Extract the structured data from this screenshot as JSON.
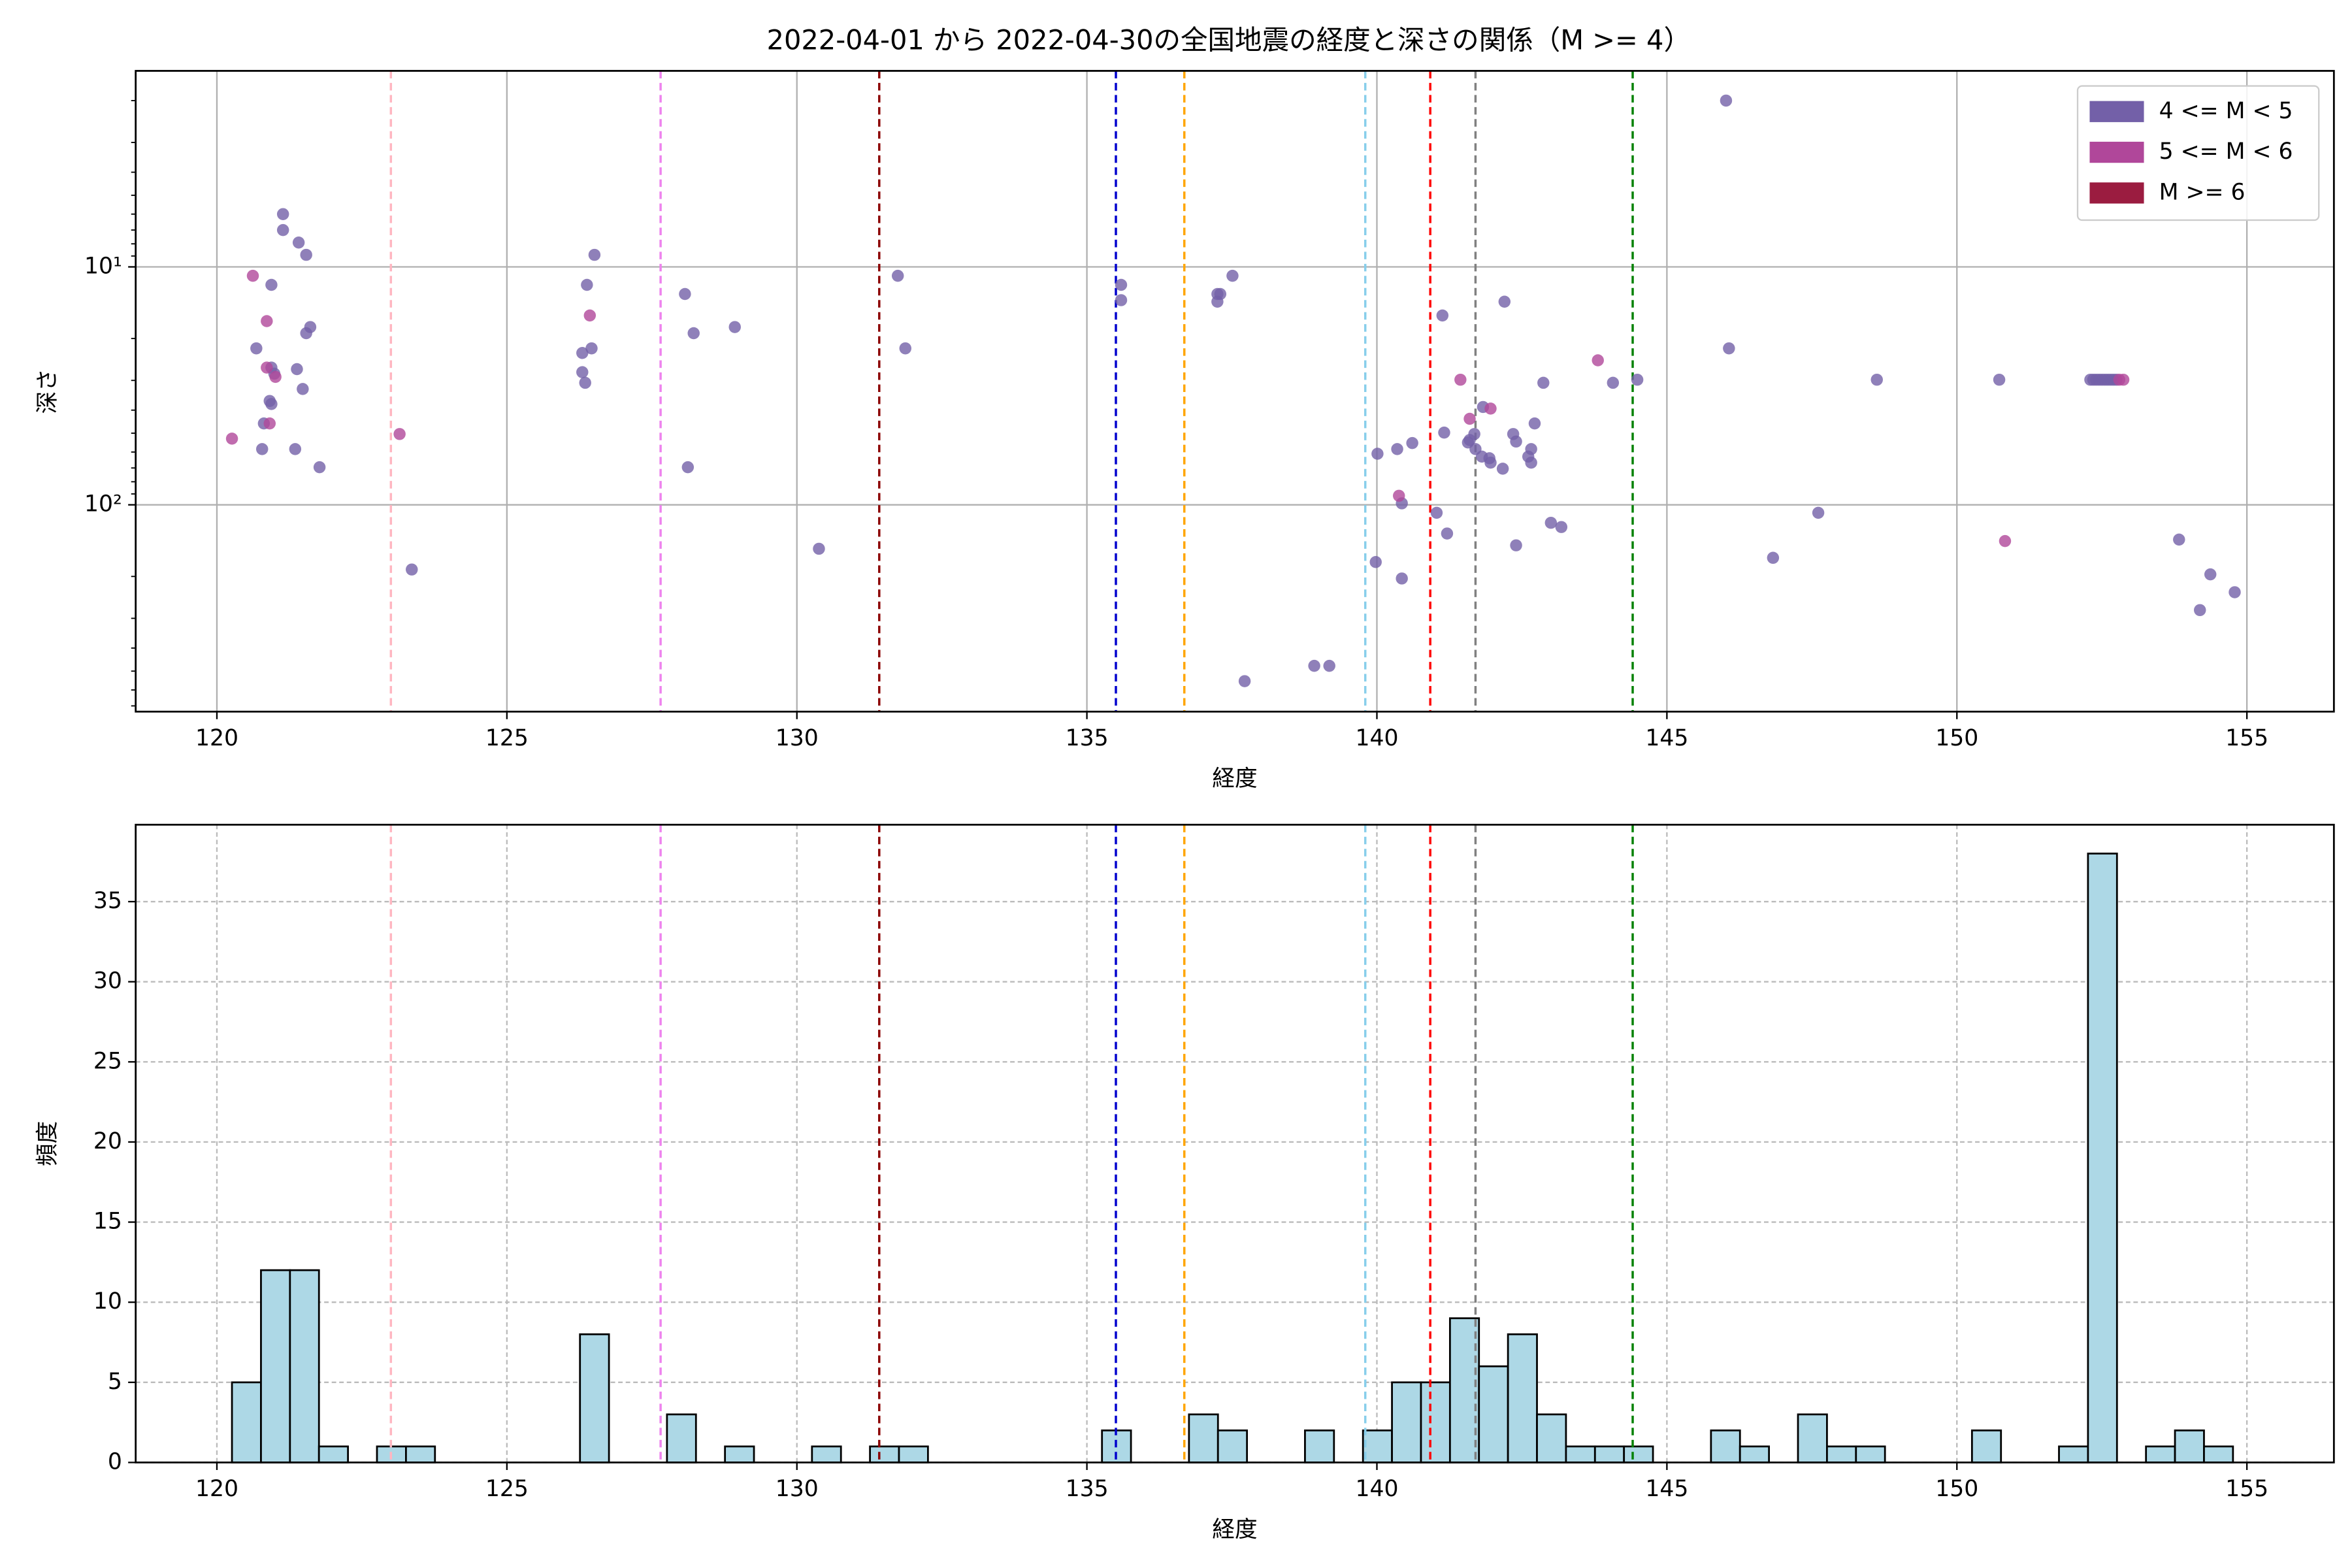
{
  "chart_data": [
    {
      "type": "scatter",
      "title": "2022-04-01 から 2022-04-30の全国地震の経度と深さの関係（M >= 4）",
      "xlabel": "経度",
      "ylabel": "深さ",
      "xlim": [
        118.6,
        156.5
      ],
      "xticks": [
        120,
        125,
        130,
        135,
        140,
        145,
        150,
        155
      ],
      "ylim": [
        1.5,
        740
      ],
      "y_log": true,
      "y_inverted": true,
      "yticks": [
        {
          "value": 10,
          "label": "10¹"
        },
        {
          "value": 100,
          "label": "10²"
        }
      ],
      "yminorticks": [
        2,
        3,
        4,
        5,
        6,
        7,
        8,
        9,
        20,
        30,
        40,
        50,
        60,
        70,
        80,
        90,
        200,
        300,
        400,
        500,
        600,
        700
      ],
      "grid": true,
      "grid_style": "solid",
      "legend": "upper right",
      "reference_lines": [
        {
          "x": 123.0,
          "color": "#ffb6c1"
        },
        {
          "x": 127.65,
          "color": "#ee82ee"
        },
        {
          "x": 131.42,
          "color": "#8b0000"
        },
        {
          "x": 135.5,
          "color": "#0000cd"
        },
        {
          "x": 136.68,
          "color": "#ffa500"
        },
        {
          "x": 139.8,
          "color": "#87ceeb"
        },
        {
          "x": 140.92,
          "color": "#ff0000"
        },
        {
          "x": 141.7,
          "color": "#808080"
        },
        {
          "x": 144.41,
          "color": "#008000"
        }
      ],
      "series": [
        {
          "name": "4 <= M < 5",
          "color": "#7360a8",
          "x": [
            121.14,
            121.14,
            121.41,
            121.54,
            120.94,
            121.61,
            121.54,
            120.68,
            120.94,
            121.38,
            120.99,
            121.48,
            120.91,
            120.94,
            120.81,
            120.78,
            121.35,
            121.77,
            126.51,
            126.38,
            126.46,
            126.3,
            126.3,
            126.35,
            123.36,
            128.07,
            128.22,
            128.93,
            128.12,
            130.38,
            131.74,
            131.87,
            135.59,
            135.59,
            137.25,
            137.3,
            137.25,
            137.51,
            137.72,
            138.92,
            139.18,
            140.01,
            139.98,
            140.35,
            140.43,
            140.61,
            140.43,
            141.03,
            141.13,
            141.16,
            141.21,
            141.68,
            141.6,
            141.57,
            141.7,
            141.81,
            141.94,
            141.83,
            141.96,
            142.17,
            142.2,
            142.4,
            142.35,
            142.4,
            142.66,
            142.61,
            142.72,
            142.66,
            142.87,
            143.0,
            143.18,
            144.07,
            144.49,
            146.02,
            146.07,
            146.83,
            147.61,
            148.62,
            150.73,
            152.3,
            152.35,
            152.4,
            152.45,
            152.5,
            152.55,
            152.6,
            152.65,
            152.7,
            152.75,
            153.83,
            154.37,
            154.19,
            154.79
          ],
          "values": [
            6.0,
            7.0,
            7.9,
            8.9,
            11.9,
            17.9,
            19.0,
            22.0,
            26.5,
            26.9,
            28.1,
            32.6,
            36.6,
            37.7,
            45.5,
            58.3,
            58.3,
            69.5,
            8.9,
            11.9,
            22.0,
            23.0,
            27.7,
            30.7,
            187,
            13.0,
            19.0,
            17.9,
            69.5,
            153,
            10.9,
            22.0,
            11.9,
            13.8,
            13.0,
            13.0,
            14.0,
            10.9,
            551,
            475,
            475,
            61,
            174,
            58.3,
            98.6,
            55,
            204,
            108,
            16,
            49.7,
            132,
            50.4,
            53.4,
            54.7,
            58.3,
            62.7,
            63.7,
            38.8,
            66.5,
            70.5,
            14.0,
            148,
            50.4,
            54.2,
            58.3,
            62.7,
            45.5,
            66.5,
            30.7,
            119,
            124,
            30.7,
            29.8,
            2.0,
            22.0,
            167,
            108,
            29.8,
            29.8,
            29.8,
            29.8,
            29.8,
            29.8,
            29.8,
            29.8,
            29.8,
            29.8,
            29.8,
            29.8,
            140,
            196,
            277,
            233
          ]
        },
        {
          "name": "5 <= M < 6",
          "color": "#b0479a",
          "x": [
            120.62,
            120.86,
            120.86,
            121.01,
            120.91,
            120.26,
            126.43,
            123.15,
            141.44,
            141.6,
            141.96,
            140.38,
            143.81,
            150.83,
            152.8,
            152.87
          ],
          "values": [
            10.9,
            16.9,
            26.5,
            29,
            45.5,
            52.7,
            16,
            50.4,
            29.8,
            43.5,
            39.4,
            91.6,
            24.7,
            142,
            29.8,
            29.8
          ]
        },
        {
          "name": "M >= 6",
          "color": "#9b1c40",
          "x": [],
          "values": []
        }
      ]
    },
    {
      "type": "histogram",
      "xlabel": "経度",
      "ylabel": "頻度",
      "xlim": [
        118.6,
        156.5
      ],
      "xticks": [
        120,
        125,
        130,
        135,
        140,
        145,
        150,
        155
      ],
      "ylim": [
        0,
        39.8
      ],
      "yticks": [
        0,
        5,
        10,
        15,
        20,
        25,
        30,
        35
      ],
      "grid": true,
      "grid_style": "dashed",
      "color": "#add8e6",
      "edgecolor": "#000000",
      "reference_lines": [
        {
          "x": 123.0,
          "color": "#ffb6c1"
        },
        {
          "x": 127.65,
          "color": "#ee82ee"
        },
        {
          "x": 131.42,
          "color": "#8b0000"
        },
        {
          "x": 135.5,
          "color": "#0000cd"
        },
        {
          "x": 136.68,
          "color": "#ffa500"
        },
        {
          "x": 139.8,
          "color": "#87ceeb"
        },
        {
          "x": 140.92,
          "color": "#ff0000"
        },
        {
          "x": 141.7,
          "color": "#808080"
        },
        {
          "x": 144.41,
          "color": "#008000"
        }
      ],
      "bins": [
        120.26,
        120.76,
        121.26,
        121.76,
        122.26,
        122.76,
        123.26,
        123.76,
        124.26,
        124.76,
        125.26,
        125.76,
        126.26,
        126.76,
        127.26,
        127.76,
        128.26,
        128.76,
        129.26,
        129.76,
        130.26,
        130.76,
        131.26,
        131.76,
        132.26,
        132.76,
        133.26,
        133.76,
        134.26,
        134.76,
        135.26,
        135.76,
        136.26,
        136.76,
        137.26,
        137.76,
        138.26,
        138.76,
        139.26,
        139.76,
        140.26,
        140.76,
        141.26,
        141.76,
        142.26,
        142.76,
        143.26,
        143.76,
        144.26,
        144.76,
        145.26,
        145.76,
        146.26,
        146.76,
        147.26,
        147.76,
        148.26,
        148.76,
        149.26,
        149.76,
        150.26,
        150.76,
        151.26,
        151.76,
        152.26,
        152.76,
        153.26,
        153.76,
        154.26,
        154.76
      ],
      "values": [
        5,
        12,
        12,
        1,
        0,
        1,
        1,
        0,
        0,
        0,
        0,
        0,
        8,
        0,
        0,
        3,
        0,
        1,
        0,
        0,
        1,
        0,
        1,
        1,
        0,
        0,
        0,
        0,
        0,
        0,
        2,
        0,
        0,
        3,
        2,
        0,
        0,
        2,
        0,
        2,
        5,
        5,
        9,
        6,
        8,
        3,
        1,
        1,
        1,
        0,
        0,
        2,
        1,
        0,
        3,
        1,
        1,
        0,
        0,
        0,
        2,
        0,
        0,
        1,
        38,
        0,
        1,
        2,
        1
      ]
    }
  ]
}
